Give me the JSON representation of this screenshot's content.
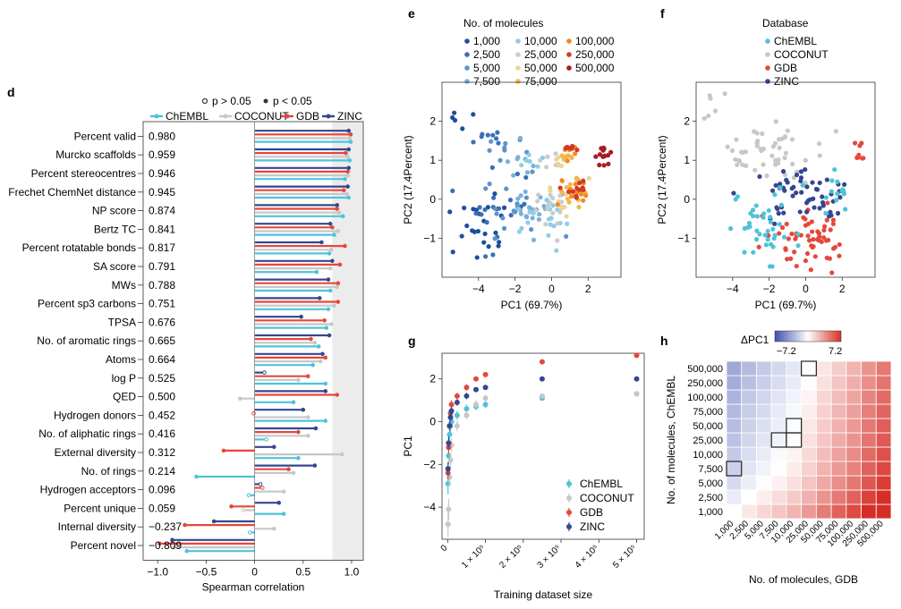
{
  "chart_data": [
    {
      "panel": "d",
      "type": "bar",
      "legend": {
        "significance": [
          {
            "marker": "open",
            "label": "p > 0.05"
          },
          {
            "marker": "filled",
            "label": "p < 0.05"
          }
        ],
        "series": [
          {
            "name": "ChEMBL",
            "color": "#4ec3d8"
          },
          {
            "name": "COCONUT",
            "color": "#c7c7c7"
          },
          {
            "name": "GDB",
            "color": "#e5483b"
          },
          {
            "name": "ZINC",
            "color": "#34468f"
          }
        ]
      },
      "xlabel": "Spearman correlation",
      "xlim": [
        -1.15,
        1.12
      ],
      "xticks": [
        "−1.0",
        "−0.5",
        "0",
        "0.5",
        "1.0"
      ],
      "xtick_values": [
        -1.0,
        -0.5,
        0,
        0.5,
        1.0
      ],
      "shaded_from": 0.8,
      "categories": [
        {
          "name": "Percent valid",
          "rho": "0.980"
        },
        {
          "name": "Murcko scaffolds",
          "rho": "0.959"
        },
        {
          "name": "Percent stereocentres",
          "rho": "0.946"
        },
        {
          "name": "Frechet ChemNet distance",
          "rho": "0.945"
        },
        {
          "name": "NP score",
          "rho": "0.874"
        },
        {
          "name": "Bertz TC",
          "rho": "0.841"
        },
        {
          "name": "Percent rotatable bonds",
          "rho": "0.817"
        },
        {
          "name": "SA score",
          "rho": "0.791"
        },
        {
          "name": "MWs",
          "rho": "0.788"
        },
        {
          "name": "Percent sp3 carbons",
          "rho": "0.751"
        },
        {
          "name": "TPSA",
          "rho": "0.676"
        },
        {
          "name": "No. of aromatic rings",
          "rho": "0.665"
        },
        {
          "name": "Atoms",
          "rho": "0.664"
        },
        {
          "name": "log P",
          "rho": "0.525"
        },
        {
          "name": "QED",
          "rho": "0.500"
        },
        {
          "name": "Hydrogen donors",
          "rho": "0.452"
        },
        {
          "name": "No. of aliphatic rings",
          "rho": "0.416"
        },
        {
          "name": "External diversity",
          "rho": "0.312"
        },
        {
          "name": "No. of rings",
          "rho": "0.214"
        },
        {
          "name": "Hydrogen acceptors",
          "rho": "0.096"
        },
        {
          "name": "Percent unique",
          "rho": "0.059"
        },
        {
          "name": "Internal diversity",
          "rho": "−0.237"
        },
        {
          "name": "Percent novel",
          "rho": "−0.809"
        }
      ],
      "series": [
        {
          "name": "ZINC",
          "values": [
            0.97,
            0.97,
            0.97,
            0.96,
            0.85,
            0.78,
            0.69,
            0.8,
            0.76,
            0.67,
            0.48,
            0.77,
            0.7,
            0.1,
            0.73,
            0.5,
            0.63,
            0.2,
            0.62,
            0.06,
            0.25,
            -0.42,
            -0.85
          ]
        },
        {
          "name": "GDB",
          "values": [
            0.99,
            0.94,
            0.96,
            0.92,
            0.85,
            0.8,
            0.93,
            0.88,
            0.86,
            0.86,
            0.72,
            0.58,
            0.73,
            0.55,
            0.85,
            -0.01,
            0.45,
            -0.32,
            0.35,
            0.08,
            -0.24,
            -0.72,
            -0.98
          ]
        },
        {
          "name": "COCONUT",
          "values": [
            0.98,
            0.96,
            0.96,
            0.95,
            0.87,
            0.86,
            0.79,
            0.78,
            0.85,
            0.82,
            0.79,
            0.62,
            0.68,
            0.45,
            -0.15,
            0.55,
            0.55,
            0.9,
            0.4,
            0.3,
            -0.12,
            0.2,
            -0.83
          ]
        },
        {
          "name": "ChEMBL",
          "values": [
            0.99,
            0.98,
            0.93,
            0.97,
            0.91,
            0.82,
            0.77,
            0.64,
            0.78,
            0.76,
            0.74,
            0.66,
            0.6,
            0.73,
            0.4,
            0.73,
            0.12,
            0.45,
            -0.6,
            -0.06,
            0.3,
            -0.05,
            -0.7
          ]
        }
      ]
    },
    {
      "panel": "e",
      "type": "scatter",
      "xlabel": "PC1 (69.7%)",
      "ylabel": "PC2 (17.4Percent)",
      "xticks": [
        "−4",
        "−2",
        "0",
        "2"
      ],
      "yticks": [
        "2",
        "1",
        "0",
        "−1"
      ],
      "xlim": [
        -6.0,
        3.8
      ],
      "ylim": [
        -2.0,
        3.0
      ],
      "legend_title": "No. of molecules",
      "legend": [
        {
          "label": "1,000",
          "color": "#1e4f9c"
        },
        {
          "label": "10,000",
          "color": "#8fcde6"
        },
        {
          "label": "100,000",
          "color": "#f08a1e"
        },
        {
          "label": "2,500",
          "color": "#3a6fb5"
        },
        {
          "label": "25,000",
          "color": "#c8ccd0"
        },
        {
          "label": "250,000",
          "color": "#d43a23"
        },
        {
          "label": "5,000",
          "color": "#5b93cc"
        },
        {
          "label": "50,000",
          "color": "#e9d49a"
        },
        {
          "label": "500,000",
          "color": "#a61d22"
        },
        {
          "label": "7,500",
          "color": "#79b0da"
        },
        {
          "label": "75,000",
          "color": "#f5b54c"
        }
      ],
      "clusters": [
        {
          "group": "1,000",
          "cx": -3.8,
          "cy": -0.6,
          "sx": 0.9,
          "sy": 0.6,
          "n": 24
        },
        {
          "group": "1,000",
          "cx": -5.0,
          "cy": 2.1,
          "sx": 0.35,
          "sy": 0.35,
          "n": 5
        },
        {
          "group": "2,500",
          "cx": -3.2,
          "cy": -0.3,
          "sx": 1.0,
          "sy": 0.6,
          "n": 20
        },
        {
          "group": "2,500",
          "cx": -3.6,
          "cy": 1.7,
          "sx": 0.5,
          "sy": 0.2,
          "n": 8
        },
        {
          "group": "5,000",
          "cx": -2.1,
          "cy": -0.2,
          "sx": 1.0,
          "sy": 0.5,
          "n": 20
        },
        {
          "group": "5,000",
          "cx": -2.5,
          "cy": 1.3,
          "sx": 0.5,
          "sy": 0.2,
          "n": 8
        },
        {
          "group": "7,500",
          "cx": -1.2,
          "cy": -0.3,
          "sx": 0.9,
          "sy": 0.4,
          "n": 18
        },
        {
          "group": "7,500",
          "cx": -1.6,
          "cy": 1.1,
          "sx": 0.4,
          "sy": 0.2,
          "n": 7
        },
        {
          "group": "10,000",
          "cx": -0.6,
          "cy": -0.4,
          "sx": 0.8,
          "sy": 0.4,
          "n": 18
        },
        {
          "group": "10,000",
          "cx": -1.0,
          "cy": 1.0,
          "sx": 0.4,
          "sy": 0.15,
          "n": 6
        },
        {
          "group": "25,000",
          "cx": 0.0,
          "cy": -0.1,
          "sx": 0.6,
          "sy": 0.35,
          "n": 16
        },
        {
          "group": "25,000",
          "cx": -0.2,
          "cy": 1.0,
          "sx": 0.4,
          "sy": 0.15,
          "n": 6
        },
        {
          "group": "50,000",
          "cx": 0.6,
          "cy": 0.1,
          "sx": 0.5,
          "sy": 0.3,
          "n": 14
        },
        {
          "group": "50,000",
          "cx": 0.4,
          "cy": 1.0,
          "sx": 0.3,
          "sy": 0.15,
          "n": 6
        },
        {
          "group": "75,000",
          "cx": 1.0,
          "cy": 0.1,
          "sx": 0.4,
          "sy": 0.25,
          "n": 12
        },
        {
          "group": "75,000",
          "cx": 0.9,
          "cy": 1.1,
          "sx": 0.25,
          "sy": 0.1,
          "n": 6
        },
        {
          "group": "100,000",
          "cx": 1.3,
          "cy": 0.2,
          "sx": 0.4,
          "sy": 0.2,
          "n": 12
        },
        {
          "group": "100,000",
          "cx": 1.0,
          "cy": 1.2,
          "sx": 0.2,
          "sy": 0.1,
          "n": 6
        },
        {
          "group": "250,000",
          "cx": 1.6,
          "cy": 0.2,
          "sx": 0.35,
          "sy": 0.15,
          "n": 12
        },
        {
          "group": "250,000",
          "cx": 1.1,
          "cy": 1.2,
          "sx": 0.2,
          "sy": 0.1,
          "n": 6
        },
        {
          "group": "500,000",
          "cx": 2.8,
          "cy": 1.1,
          "sx": 0.25,
          "sy": 0.2,
          "n": 14
        }
      ]
    },
    {
      "panel": "f",
      "type": "scatter",
      "xlabel": "PC1 (69.7%)",
      "ylabel": "PC2 (17.4Percent)",
      "xticks": [
        "−4",
        "−2",
        "0",
        "2"
      ],
      "yticks": [
        "2",
        "1",
        "0",
        "−1"
      ],
      "xlim": [
        -6.0,
        3.8
      ],
      "ylim": [
        -2.0,
        3.0
      ],
      "legend_title": "Database",
      "legend": [
        {
          "label": "ChEMBL",
          "color": "#4ec3d8"
        },
        {
          "label": "COCONUT",
          "color": "#c7c7c7"
        },
        {
          "label": "GDB",
          "color": "#e5483b"
        },
        {
          "label": "ZINC",
          "color": "#34468f"
        }
      ],
      "clusters": [
        {
          "group": "COCONUT",
          "cx": -2.2,
          "cy": 1.2,
          "sx": 1.6,
          "sy": 0.35,
          "n": 50
        },
        {
          "group": "COCONUT",
          "cx": -5.2,
          "cy": 2.3,
          "sx": 0.4,
          "sy": 0.3,
          "n": 6
        },
        {
          "group": "GDB",
          "cx": 0.4,
          "cy": -0.9,
          "sx": 1.1,
          "sy": 0.4,
          "n": 60
        },
        {
          "group": "GDB",
          "cx": 2.8,
          "cy": 1.1,
          "sx": 0.2,
          "sy": 0.2,
          "n": 8
        },
        {
          "group": "ZINC",
          "cx": -0.2,
          "cy": 0.1,
          "sx": 1.3,
          "sy": 0.35,
          "n": 55
        },
        {
          "group": "ChEMBL",
          "cx": -2.5,
          "cy": -0.6,
          "sx": 1.0,
          "sy": 0.5,
          "n": 40
        },
        {
          "group": "ChEMBL",
          "cx": 1.6,
          "cy": 0.2,
          "sx": 0.5,
          "sy": 0.3,
          "n": 14
        }
      ]
    },
    {
      "panel": "g",
      "type": "scatter",
      "xlabel": "Training dataset size",
      "ylabel": "PC1",
      "xlim": [
        -15000,
        520000
      ],
      "ylim": [
        -5.5,
        3.2
      ],
      "xticks": [
        "0",
        "1 × 10⁵",
        "2 × 10⁵",
        "3 × 10⁵",
        "4 × 10⁵",
        "5 × 10⁵"
      ],
      "xtick_values": [
        0,
        100000,
        200000,
        300000,
        400000,
        500000
      ],
      "yticks": [
        "2",
        "0",
        "−2",
        "−4"
      ],
      "ytick_values": [
        2,
        0,
        -2,
        -4
      ],
      "x": [
        1000,
        2500,
        5000,
        7500,
        10000,
        25000,
        50000,
        75000,
        100000,
        250000,
        500000
      ],
      "series": [
        {
          "name": "ChEMBL",
          "color": "#4ec3d8",
          "values": [
            -2.9,
            -1.6,
            -0.6,
            -0.2,
            0.0,
            0.3,
            0.6,
            0.7,
            0.8,
            1.1,
            1.3
          ],
          "err": [
            0.5,
            0.4,
            0.3,
            0.3,
            0.2,
            0.2,
            0.2,
            0.15,
            0.15,
            0.1,
            0.1
          ]
        },
        {
          "name": "COCONUT",
          "color": "#c7c7c7",
          "values": [
            -4.8,
            -4.1,
            -2.6,
            -1.8,
            -1.1,
            -0.2,
            0.3,
            0.8,
            1.1,
            1.2,
            1.3
          ],
          "err": [
            0.6,
            0.5,
            0.4,
            0.35,
            0.3,
            0.25,
            0.2,
            0.2,
            0.15,
            0.1,
            0.1
          ]
        },
        {
          "name": "GDB",
          "color": "#e5483b",
          "values": [
            -2.4,
            -1.2,
            -0.2,
            0.4,
            0.8,
            1.2,
            1.6,
            2.0,
            2.2,
            2.8,
            3.1
          ],
          "err": [
            0.3,
            0.3,
            0.2,
            0.2,
            0.2,
            0.15,
            0.15,
            0.1,
            0.1,
            0.1,
            0.1
          ]
        },
        {
          "name": "ZINC",
          "color": "#34468f",
          "values": [
            -2.2,
            -1.0,
            -0.2,
            0.2,
            0.5,
            0.9,
            1.2,
            1.5,
            1.6,
            2.0,
            2.0
          ],
          "err": [
            0.3,
            0.3,
            0.2,
            0.2,
            0.2,
            0.15,
            0.15,
            0.1,
            0.1,
            0.1,
            0.1
          ]
        }
      ]
    },
    {
      "panel": "h",
      "type": "heatmap",
      "title": "ΔPC1",
      "colorbar": {
        "min": "−7.2",
        "max": "7.2",
        "low_color": "#3f4fb0",
        "mid_color": "#ffffff",
        "high_color": "#d62e26"
      },
      "xlabel": "No. of molecules, GDB",
      "ylabel": "No. of molecules, ChEMBL",
      "x_categories": [
        "1,000",
        "2,500",
        "5,000",
        "7,500",
        "10,000",
        "25,000",
        "50,000",
        "75,000",
        "100,000",
        "250,000",
        "500,000"
      ],
      "y_categories": [
        "1,000",
        "2,500",
        "5,000",
        "7,500",
        "10,000",
        "25,000",
        "50,000",
        "75,000",
        "100,000",
        "250,000",
        "500,000"
      ],
      "vmin": -7.2,
      "vmax": 7.2,
      "boxed_cells": [
        [
          0,
          3
        ],
        [
          3,
          5
        ],
        [
          4,
          5
        ],
        [
          4,
          6
        ],
        [
          5,
          10
        ]
      ],
      "col_offset": [
        -2.0,
        -1.2,
        -0.6,
        0.0,
        0.6,
        1.5,
        2.5,
        3.4,
        4.2,
        5.3,
        6.2
      ],
      "row_offset": [
        -2.0,
        -1.2,
        -0.5,
        -0.1,
        0.2,
        0.5,
        0.7,
        0.9,
        1.1,
        1.4,
        1.6
      ]
    }
  ]
}
